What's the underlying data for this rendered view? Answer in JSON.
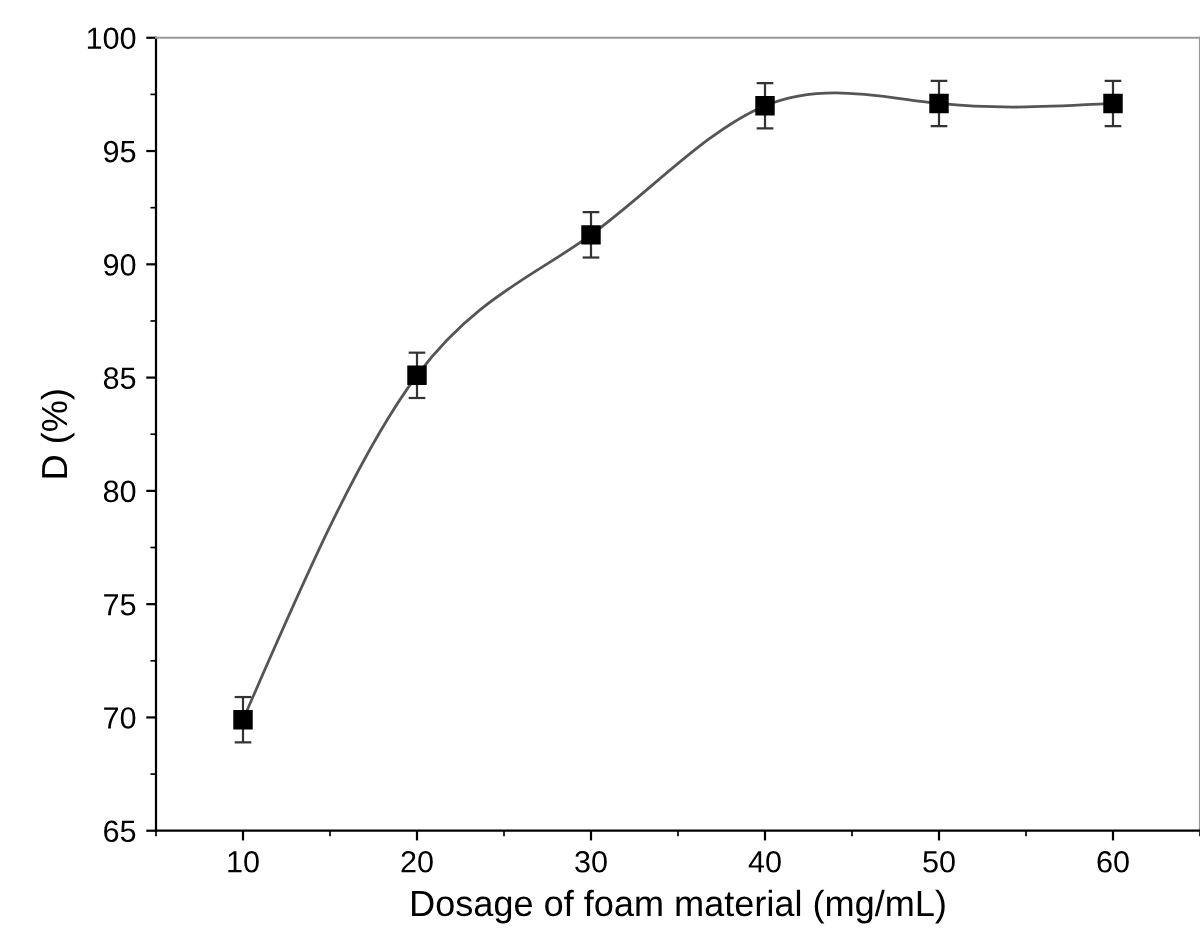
{
  "chart_data": {
    "type": "line",
    "xlabel": "Dosage of foam material (mg/mL)",
    "ylabel": "D (%)",
    "x": [
      10,
      20,
      30,
      40,
      50,
      60
    ],
    "series": [
      {
        "color": "#000000",
        "values": [
          69.9,
          85.1,
          91.3,
          97.0,
          97.1,
          97.1
        ],
        "errors": [
          1,
          1,
          1,
          1,
          1,
          1
        ]
      }
    ],
    "xlim": [
      5,
      65
    ],
    "xticks": [
      10,
      20,
      30,
      40,
      50,
      60
    ],
    "ylim": [
      65,
      100
    ],
    "yticks": [
      65,
      70,
      75,
      80,
      85,
      90,
      95,
      100
    ],
    "marker": "square",
    "line_style": "solid",
    "grid": false
  }
}
